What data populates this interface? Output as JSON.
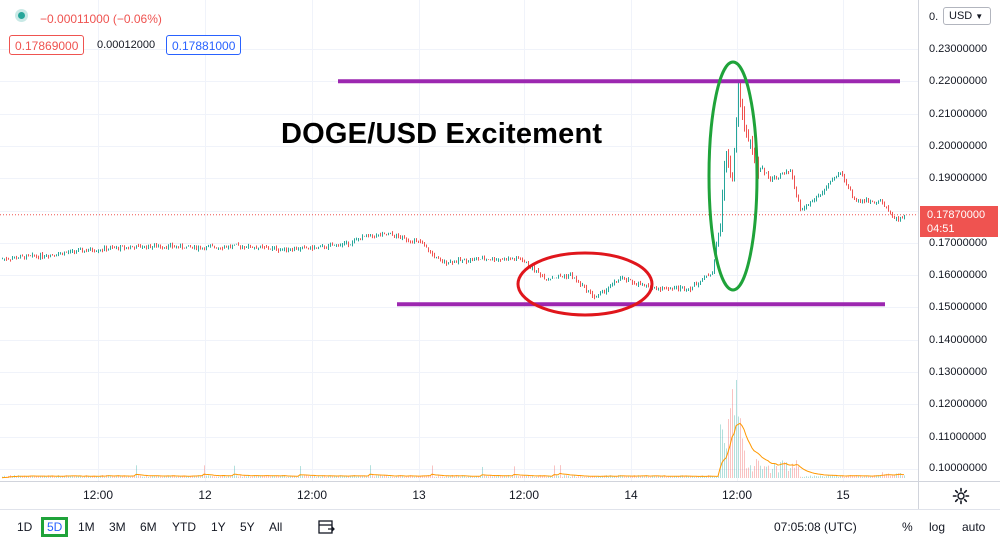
{
  "legend": {
    "change": "−0.00011000 (−0.06%)",
    "bid": "0.17869000",
    "spread": "0.00012000",
    "ask": "0.17881000"
  },
  "annotation": {
    "title": "DOGE/USD Excitement"
  },
  "price_axis": {
    "currency": "USD",
    "top_partial": "0.",
    "ticks": [
      "0.23000000",
      "0.22000000",
      "0.21000000",
      "0.20000000",
      "0.19000000",
      "0.17000000",
      "0.16000000",
      "0.15000000",
      "0.14000000",
      "0.13000000",
      "0.12000000",
      "0.11000000",
      "0.10000000"
    ],
    "current_price": "0.17870000",
    "countdown": "04:51"
  },
  "time_axis": {
    "ticks": [
      "12:00",
      "12",
      "12:00",
      "13",
      "12:00",
      "14",
      "12:00",
      "15"
    ]
  },
  "toolbar": {
    "ranges": [
      "1D",
      "5D",
      "1M",
      "3M",
      "6M",
      "YTD",
      "1Y",
      "5Y",
      "All"
    ],
    "selected_range": "5D",
    "clock": "07:05:08 (UTC)",
    "percent": "%",
    "log": "log",
    "auto": "auto"
  },
  "colors": {
    "up": "#26a69a",
    "down": "#ef5350",
    "level_line": "#9c27b0",
    "highlight_red": "#e0161c",
    "highlight_green": "#1fa33a",
    "ask_blue": "#2962ff"
  },
  "chart_data": {
    "type": "candlestick",
    "symbol": "DOGE/USD",
    "y_axis_range": [
      0.095,
      0.235
    ],
    "price_levels": [
      0.22,
      0.151
    ],
    "last_price": 0.1787,
    "path_points": [
      {
        "t": 0,
        "price": 0.165
      },
      {
        "t": 40,
        "price": 0.166
      },
      {
        "t": 80,
        "price": 0.1675
      },
      {
        "t": 120,
        "price": 0.1685
      },
      {
        "t": 160,
        "price": 0.169
      },
      {
        "t": 200,
        "price": 0.1685
      },
      {
        "t": 240,
        "price": 0.169
      },
      {
        "t": 280,
        "price": 0.168
      },
      {
        "t": 320,
        "price": 0.1685
      },
      {
        "t": 350,
        "price": 0.17
      },
      {
        "t": 365,
        "price": 0.172
      },
      {
        "t": 390,
        "price": 0.1725
      },
      {
        "t": 420,
        "price": 0.17
      },
      {
        "t": 440,
        "price": 0.164
      },
      {
        "t": 480,
        "price": 0.165
      },
      {
        "t": 520,
        "price": 0.165
      },
      {
        "t": 545,
        "price": 0.159
      },
      {
        "t": 570,
        "price": 0.16
      },
      {
        "t": 595,
        "price": 0.153
      },
      {
        "t": 620,
        "price": 0.159
      },
      {
        "t": 650,
        "price": 0.156
      },
      {
        "t": 690,
        "price": 0.156
      },
      {
        "t": 712,
        "price": 0.161
      },
      {
        "t": 720,
        "price": 0.176
      },
      {
        "t": 726,
        "price": 0.2
      },
      {
        "t": 732,
        "price": 0.188
      },
      {
        "t": 738,
        "price": 0.218
      },
      {
        "t": 745,
        "price": 0.205
      },
      {
        "t": 755,
        "price": 0.195
      },
      {
        "t": 770,
        "price": 0.19
      },
      {
        "t": 790,
        "price": 0.192
      },
      {
        "t": 800,
        "price": 0.18
      },
      {
        "t": 820,
        "price": 0.185
      },
      {
        "t": 840,
        "price": 0.192
      },
      {
        "t": 855,
        "price": 0.183
      },
      {
        "t": 880,
        "price": 0.183
      },
      {
        "t": 895,
        "price": 0.177
      },
      {
        "t": 905,
        "price": 0.1787
      }
    ]
  }
}
